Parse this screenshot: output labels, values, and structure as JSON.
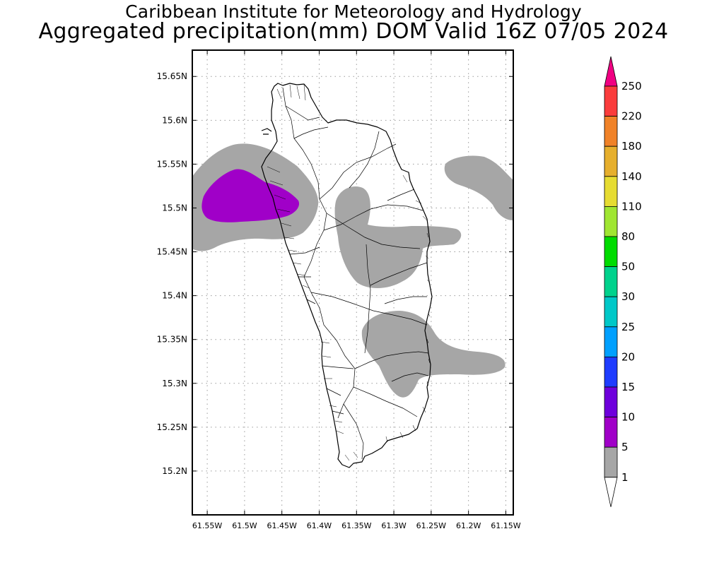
{
  "title": {
    "line1": "Caribbean Institute for Meteorology and Hydrology",
    "line2": "Aggregated precipitation(mm) DOM Valid 16Z 07/05 2024"
  },
  "map": {
    "lat_range": [
      15.15,
      15.68
    ],
    "lon_range": [
      -61.57,
      -61.14
    ],
    "lat_ticks": [
      {
        "value": 15.65,
        "label": "15.65N"
      },
      {
        "value": 15.6,
        "label": "15.6N"
      },
      {
        "value": 15.55,
        "label": "15.55N"
      },
      {
        "value": 15.5,
        "label": "15.5N"
      },
      {
        "value": 15.45,
        "label": "15.45N"
      },
      {
        "value": 15.4,
        "label": "15.4N"
      },
      {
        "value": 15.35,
        "label": "15.35N"
      },
      {
        "value": 15.3,
        "label": "15.3N"
      },
      {
        "value": 15.25,
        "label": "15.25N"
      },
      {
        "value": 15.2,
        "label": "15.2N"
      }
    ],
    "lon_ticks": [
      {
        "value": -61.55,
        "label": "61.55W"
      },
      {
        "value": -61.5,
        "label": "61.5W"
      },
      {
        "value": -61.45,
        "label": "61.45W"
      },
      {
        "value": -61.4,
        "label": "61.4W"
      },
      {
        "value": -61.35,
        "label": "61.35W"
      },
      {
        "value": -61.3,
        "label": "61.3W"
      },
      {
        "value": -61.25,
        "label": "61.25W"
      },
      {
        "value": -61.2,
        "label": "61.2W"
      },
      {
        "value": -61.15,
        "label": "61.15W"
      }
    ],
    "grid": "dotted"
  },
  "colorbar": {
    "levels": [
      {
        "label": "1",
        "color": "#a6a6a6"
      },
      {
        "label": "5",
        "color": "#a000c8"
      },
      {
        "label": "10",
        "color": "#6e00dc"
      },
      {
        "label": "15",
        "color": "#1e3cff"
      },
      {
        "label": "20",
        "color": "#00a0ff"
      },
      {
        "label": "25",
        "color": "#00c8c8"
      },
      {
        "label": "30",
        "color": "#00d28c"
      },
      {
        "label": "50",
        "color": "#00dc00"
      },
      {
        "label": "80",
        "color": "#a0e632"
      },
      {
        "label": "110",
        "color": "#e6dc32"
      },
      {
        "label": "140",
        "color": "#e6af2d"
      },
      {
        "label": "180",
        "color": "#f08228"
      },
      {
        "label": "220",
        "color": "#fa3c3c"
      },
      {
        "label": "250",
        "color": "#f00082"
      }
    ]
  }
}
